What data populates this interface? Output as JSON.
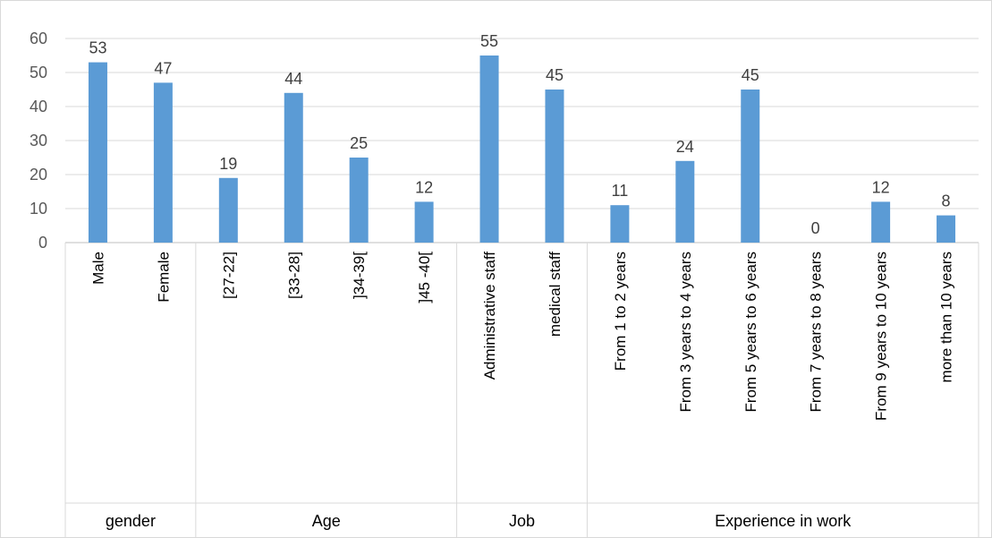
{
  "chart_data": {
    "type": "bar",
    "title": "",
    "xlabel": "",
    "ylabel": "",
    "ylim": [
      0,
      60
    ],
    "yticks": [
      0,
      10,
      20,
      30,
      40,
      50,
      60
    ],
    "grid": true,
    "legend": "none",
    "bar_color": "#5b9bd5",
    "categories": [
      "Male",
      "Female",
      "[27-22]",
      "[33-28]",
      "]34-39[",
      "]45 -40[",
      "Administrative staff",
      "medical staff",
      "From 1 to 2 years",
      "From 3 years to 4 years",
      "From 5 years to 6 years",
      "From 7 years to 8 years",
      "From 9 years to 10 years",
      "more than 10 years"
    ],
    "values": [
      53,
      47,
      19,
      44,
      25,
      12,
      55,
      45,
      11,
      24,
      45,
      0,
      12,
      8
    ],
    "groups": [
      {
        "label": "gender",
        "count": 2
      },
      {
        "label": "Age",
        "count": 4
      },
      {
        "label": "Job",
        "count": 2
      },
      {
        "label": "Experience in work",
        "count": 6
      }
    ]
  }
}
